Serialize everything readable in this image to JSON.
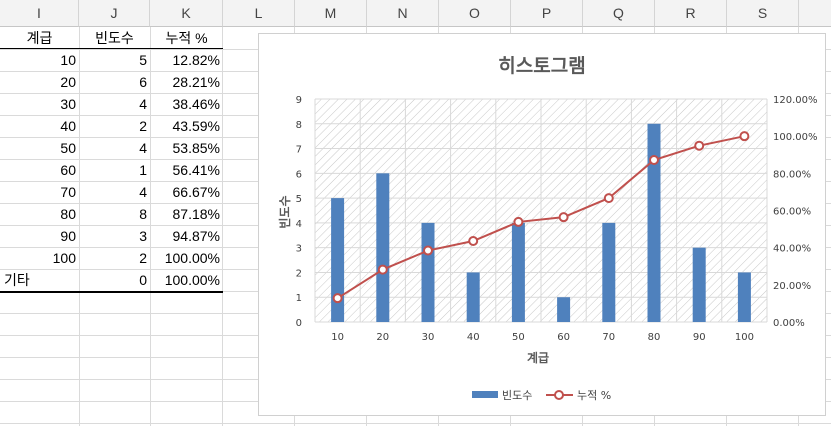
{
  "columns": [
    "I",
    "J",
    "K",
    "L",
    "M",
    "N",
    "O",
    "P",
    "Q",
    "R",
    "S"
  ],
  "table": {
    "headers": [
      "계급",
      "빈도수",
      "누적 %"
    ],
    "rows": [
      [
        "10",
        "5",
        "12.82%"
      ],
      [
        "20",
        "6",
        "28.21%"
      ],
      [
        "30",
        "4",
        "38.46%"
      ],
      [
        "40",
        "2",
        "43.59%"
      ],
      [
        "50",
        "4",
        "53.85%"
      ],
      [
        "60",
        "1",
        "56.41%"
      ],
      [
        "70",
        "4",
        "66.67%"
      ],
      [
        "80",
        "8",
        "87.18%"
      ],
      [
        "90",
        "3",
        "94.87%"
      ],
      [
        "100",
        "2",
        "100.00%"
      ],
      [
        "기타",
        "0",
        "100.00%"
      ]
    ]
  },
  "chart_data": {
    "type": "bar",
    "title": "히스토그램",
    "xlabel": "계급",
    "ylabel": "빈도수",
    "categories": [
      "10",
      "20",
      "30",
      "40",
      "50",
      "60",
      "70",
      "80",
      "90",
      "100"
    ],
    "series": [
      {
        "name": "빈도수",
        "type": "bar",
        "values": [
          5,
          6,
          4,
          2,
          4,
          1,
          4,
          8,
          3,
          2
        ],
        "color": "#4f81bd",
        "axis": "left"
      },
      {
        "name": "누적 %",
        "type": "line",
        "values": [
          12.82,
          28.21,
          38.46,
          43.59,
          53.85,
          56.41,
          66.67,
          87.18,
          94.87,
          100.0
        ],
        "color": "#c0504d",
        "axis": "right"
      }
    ],
    "ylim": [
      0,
      9
    ],
    "y_ticks": [
      "0",
      "1",
      "2",
      "3",
      "4",
      "5",
      "6",
      "7",
      "8",
      "9"
    ],
    "y2lim": [
      0,
      120
    ],
    "y2_ticks": [
      "0.00%",
      "20.00%",
      "40.00%",
      "60.00%",
      "80.00%",
      "100.00%",
      "120.00%"
    ],
    "grid": true,
    "legend": "bottom"
  }
}
